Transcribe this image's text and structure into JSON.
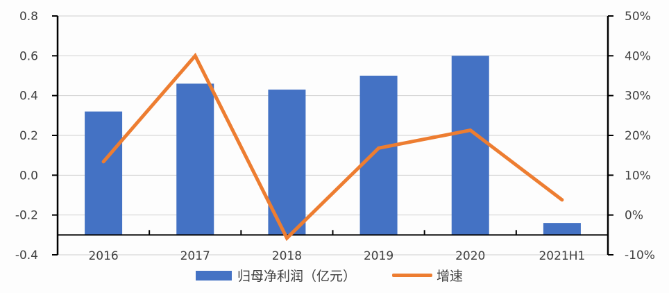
{
  "chart_data": {
    "type": "bar+line",
    "title": "",
    "categories": [
      "2016",
      "2017",
      "2018",
      "2019",
      "2020",
      "2021H1"
    ],
    "series": [
      {
        "name": "归母净利润（亿元）",
        "type": "bar",
        "axis": "left",
        "color": "#4472c4",
        "values": [
          0.32,
          0.46,
          0.43,
          0.5,
          0.6,
          -0.24
        ]
      },
      {
        "name": "增速",
        "type": "line",
        "axis": "right",
        "color": "#ed7d31",
        "values": [
          13.4,
          40.0,
          -5.8,
          16.8,
          21.3,
          3.8
        ]
      }
    ],
    "left_axis": {
      "ticks": [
        "0.8",
        "0.6",
        "0.4",
        "0.2",
        "0.0",
        "-0.2",
        "-0.4"
      ],
      "ylim": [
        -0.4,
        0.8
      ],
      "category_axis_crosses_at": -0.3
    },
    "right_axis": {
      "ticks": [
        "50%",
        "40%",
        "30%",
        "20%",
        "10%",
        "0%",
        "-10%"
      ],
      "ylim": [
        -10,
        50
      ],
      "unit": "%"
    },
    "grid": true,
    "legend_position": "bottom"
  },
  "legend": {
    "bar_label": "归母净利润（亿元）",
    "line_label": "增速"
  }
}
